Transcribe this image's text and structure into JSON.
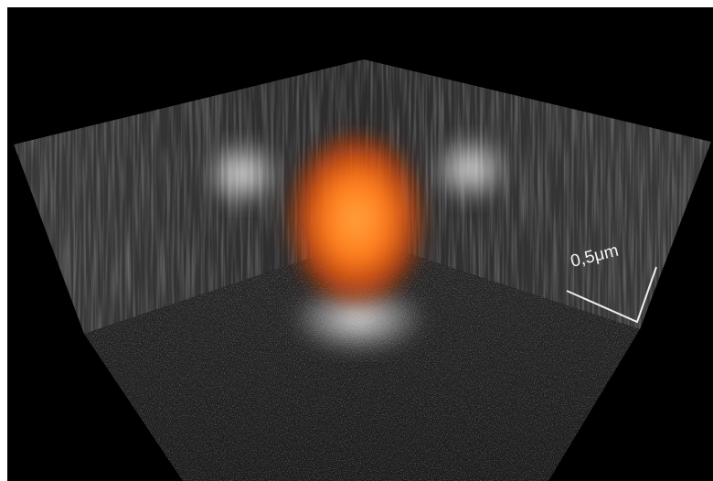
{
  "scale_bar": {
    "label": "0,5μm"
  }
}
